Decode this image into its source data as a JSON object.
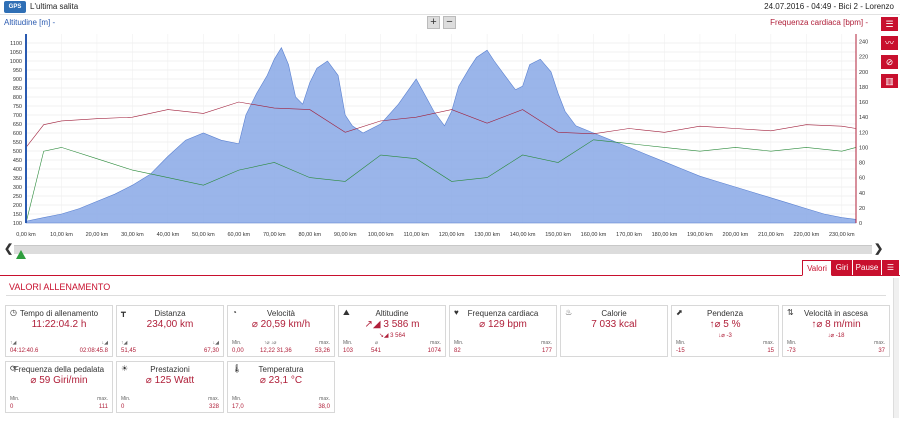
{
  "header": {
    "logo_text": "GPS",
    "title": "L'ultima salita",
    "meta": "24.07.2016  -  04:49  -  Bici 2  -  Lorenzo"
  },
  "axes": {
    "left_title": "Altitudine [m]  -",
    "right_title": "Frequenza cardiaca [bpm]  -",
    "zoom_in": "+",
    "zoom_out": "−"
  },
  "toolbar_icons": [
    "list-icon",
    "chart-line-icon",
    "no-sign-icon",
    "bar-chart-icon"
  ],
  "tabs": [
    {
      "label": "Valori",
      "active": true
    },
    {
      "label": "Giri",
      "active": false
    },
    {
      "label": "Pause",
      "active": false
    }
  ],
  "tab_menu_icon": "list-icon",
  "section_title": "VALORI ALLENAMENTO",
  "cards": [
    {
      "id": "tempo",
      "title": "Tempo di allenamento",
      "value": "11:22:04.2 h",
      "foot": {
        "lbl_left": "↑◢",
        "lbl_right": "↓◢",
        "val_left": "04:12:40.6",
        "val_right": "02:08:45.8"
      }
    },
    {
      "id": "distanza",
      "title": "Distanza",
      "value": "234,00 km",
      "foot": {
        "lbl_left": "↑◢",
        "lbl_right": "↓◢",
        "val_left": "51,45",
        "val_right": "67,30"
      }
    },
    {
      "id": "velocita",
      "title": "Velocità",
      "value": "⌀ 20,59 km/h",
      "foot": {
        "lbl_left": "Min.",
        "lbl_mid": "↑⌀  ↓⌀",
        "lbl_right": "max.",
        "val_left": "0,00",
        "val_mid": "12,22   31,36",
        "val_right": "53,26"
      }
    },
    {
      "id": "altitudine",
      "title": "Altitudine",
      "value": "↗◢ 3 586 m",
      "sub": "↘◢ 3 564",
      "foot": {
        "lbl_left": "Min.",
        "lbl_mid": "⌀",
        "lbl_right": "max.",
        "val_left": "103",
        "val_mid": "541",
        "val_right": "1074"
      }
    },
    {
      "id": "cardio",
      "title": "Frequenza cardiaca",
      "value": "⌀ 129 bpm",
      "foot": {
        "lbl_left": "Min.",
        "lbl_right": "max.",
        "val_left": "82",
        "val_right": "177"
      }
    },
    {
      "id": "calorie",
      "title": "Calorie",
      "value": "7 033 kcal",
      "foot": {}
    },
    {
      "id": "pendenza",
      "title": "Pendenza",
      "value": "↑⌀ 5 %",
      "sub": "↓⌀ -3",
      "foot": {
        "lbl_left": "Min.",
        "lbl_right": "max.",
        "val_left": "-15",
        "val_right": "15"
      }
    },
    {
      "id": "vam",
      "title": "Velocità in ascesa",
      "value": "↑⌀ 8 m/min",
      "sub": "↓⌀ -18",
      "foot": {
        "lbl_left": "Min.",
        "lbl_right": "max.",
        "val_left": "-73",
        "val_right": "37"
      }
    },
    {
      "id": "cadenza",
      "title": "Frequenza della pedalata",
      "value": "⌀ 59 Giri/min",
      "foot": {
        "lbl_left": "Min.",
        "lbl_right": "max.",
        "val_left": "0",
        "val_right": "111"
      }
    },
    {
      "id": "prestazioni",
      "title": "Prestazioni",
      "value": "⌀ 125 Watt",
      "foot": {
        "lbl_left": "Min.",
        "lbl_right": "max.",
        "val_left": "0",
        "val_right": "328"
      }
    },
    {
      "id": "temperatura",
      "title": "Temperatura",
      "value": "⌀ 23,1 °C",
      "foot": {
        "lbl_left": "Min.",
        "lbl_right": "max.",
        "val_left": "17,0",
        "val_right": "38,0"
      }
    }
  ],
  "card_icons": [
    "stopwatch-icon",
    "distance-icon",
    "speedometer-icon",
    "mountain-icon",
    "heart-icon",
    "flame-icon",
    "slope-icon",
    "ascent-speed-icon",
    "cadence-icon",
    "power-icon",
    "thermometer-icon"
  ],
  "chart_data": {
    "type": "area",
    "x_unit": "km",
    "x_ticks": [
      "0,00 km",
      "10,00 km",
      "20,00 km",
      "30,00 km",
      "40,00 km",
      "50,00 km",
      "60,00 km",
      "70,00 km",
      "80,00 km",
      "90,00 km",
      "100,00 km",
      "110,00 km",
      "120,00 km",
      "130,00 km",
      "140,00 km",
      "150,00 km",
      "160,00 km",
      "170,00 km",
      "180,00 km",
      "190,00 km",
      "200,00 km",
      "210,00 km",
      "220,00 km",
      "230,00 km"
    ],
    "xlim": [
      0,
      234
    ],
    "ylim_left": [
      100,
      1150
    ],
    "y_ticks_left": [
      100,
      150,
      200,
      250,
      300,
      350,
      400,
      450,
      500,
      550,
      600,
      650,
      700,
      750,
      800,
      850,
      900,
      950,
      1000,
      1050,
      1100
    ],
    "ylim_right": [
      0,
      250
    ],
    "y_ticks_right": [
      0,
      20,
      40,
      60,
      80,
      100,
      120,
      140,
      160,
      180,
      200,
      220,
      240
    ],
    "series": [
      {
        "name": "Altitudine [m]",
        "color": "#7a9de0",
        "x": [
          0,
          5,
          10,
          15,
          20,
          25,
          30,
          35,
          40,
          45,
          50,
          55,
          60,
          62,
          65,
          68,
          70,
          72,
          74,
          76,
          78,
          80,
          82,
          85,
          88,
          90,
          92,
          95,
          100,
          105,
          110,
          115,
          118,
          120,
          122,
          125,
          127,
          130,
          132,
          135,
          138,
          140,
          142,
          145,
          148,
          150,
          152,
          155,
          160,
          165,
          170,
          175,
          180,
          185,
          190,
          195,
          200,
          205,
          210,
          215,
          220,
          225,
          230,
          234
        ],
        "values": [
          110,
          130,
          150,
          180,
          220,
          260,
          310,
          370,
          470,
          560,
          600,
          560,
          540,
          700,
          820,
          920,
          1010,
          1074,
          980,
          800,
          760,
          880,
          960,
          1000,
          920,
          700,
          640,
          600,
          650,
          760,
          900,
          720,
          640,
          720,
          860,
          960,
          1020,
          1060,
          1000,
          920,
          840,
          860,
          980,
          1010,
          940,
          820,
          720,
          640,
          600,
          560,
          520,
          480,
          440,
          400,
          360,
          330,
          300,
          270,
          240,
          210,
          180,
          150,
          130,
          120
        ]
      },
      {
        "name": "Frequenza cardiaca [bpm]",
        "color": "#a0203c",
        "x": [
          0,
          5,
          10,
          20,
          30,
          40,
          50,
          60,
          70,
          80,
          90,
          100,
          110,
          120,
          130,
          140,
          150,
          160,
          170,
          180,
          190,
          200,
          210,
          220,
          230,
          234
        ],
        "values": [
          100,
          130,
          135,
          138,
          140,
          150,
          145,
          160,
          152,
          150,
          120,
          135,
          140,
          150,
          132,
          150,
          120,
          118,
          125,
          120,
          128,
          125,
          122,
          130,
          128,
          125
        ]
      },
      {
        "name": "Frequenza della pedalata",
        "color": "#2a8a3a",
        "x": [
          0,
          5,
          10,
          20,
          30,
          40,
          50,
          60,
          70,
          80,
          90,
          100,
          110,
          120,
          130,
          140,
          150,
          160,
          170,
          180,
          190,
          200,
          210,
          220,
          230,
          234
        ],
        "values": [
          0,
          95,
          100,
          85,
          70,
          60,
          50,
          70,
          80,
          60,
          55,
          90,
          85,
          55,
          60,
          90,
          80,
          110,
          105,
          100,
          95,
          100,
          95,
          100,
          95,
          100
        ]
      }
    ],
    "grid": true
  }
}
